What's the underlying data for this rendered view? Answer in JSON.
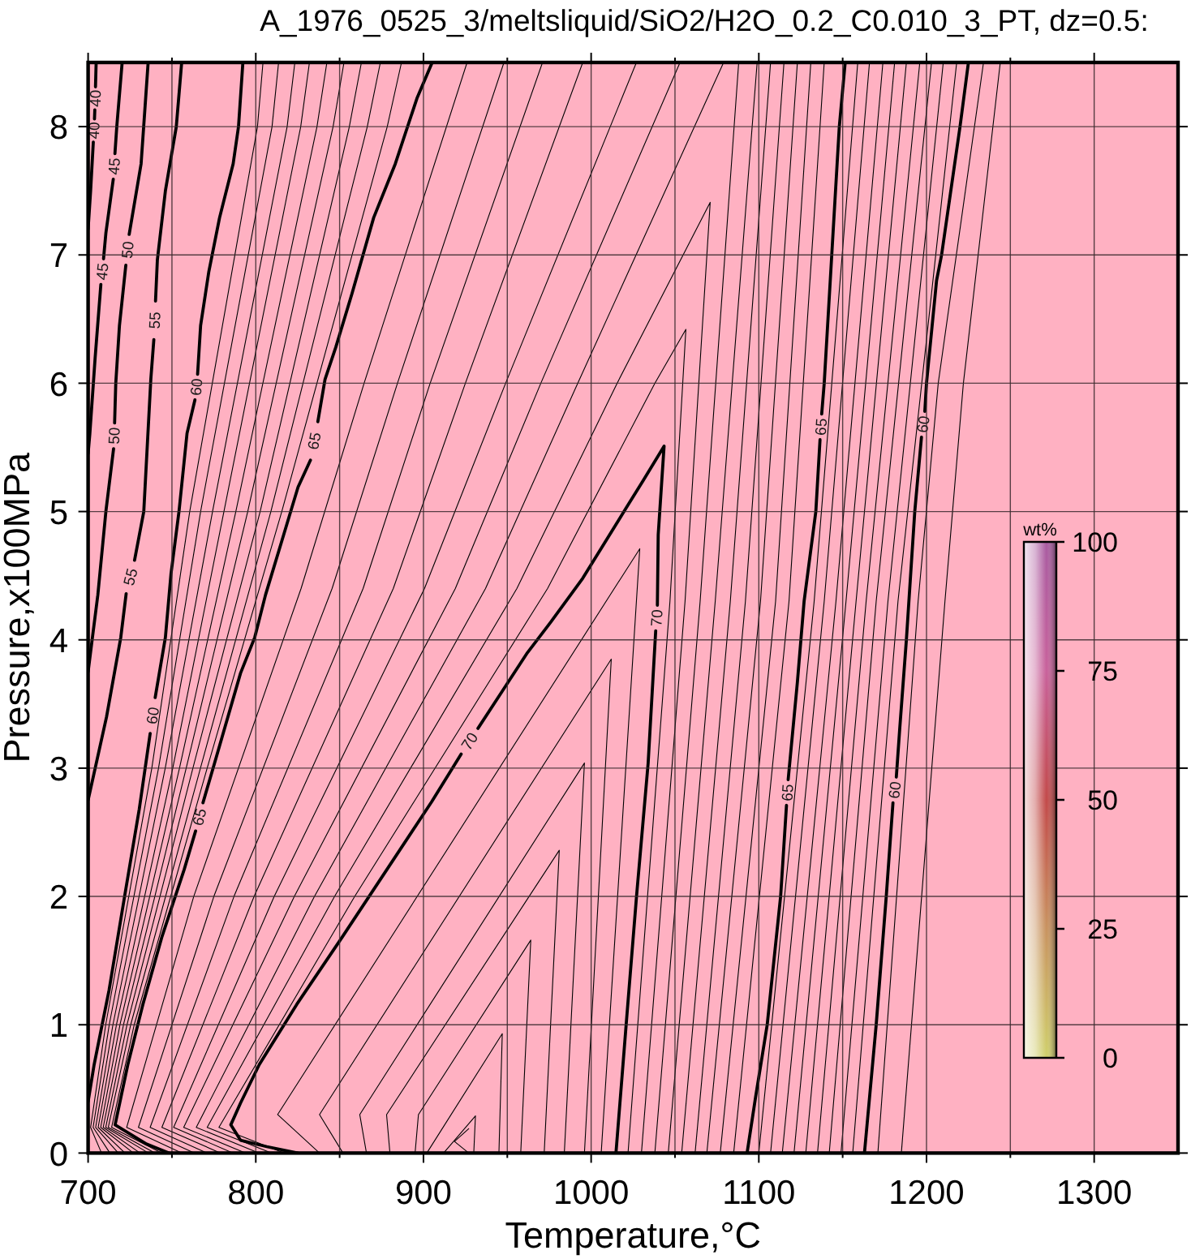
{
  "chart_data": {
    "type": "line",
    "title": "A_1976_0525_3/meltsliquid/SiO2/H2O_0.2_C0.010_3_PT, dz=0.5:",
    "xlabel": "Temperature,°C",
    "ylabel": "Pressure,x100MPa",
    "clabel": "wt%",
    "annotations": [
      "0",
      "25",
      "50",
      "75",
      "100"
    ],
    "xlim": [
      700,
      1350
    ],
    "ylim": [
      0,
      8.5
    ],
    "xticks": [
      700,
      {
        "value": 750,
        "label": null
      },
      800,
      {
        "value": 850,
        "label": null
      },
      900,
      {
        "value": 950,
        "label": null
      },
      1000,
      {
        "value": 1050,
        "label": null
      },
      1100,
      {
        "value": 1150,
        "label": null
      },
      1200,
      {
        "value": 1250,
        "label": null
      },
      1300
    ],
    "yticks": [
      0,
      1,
      2,
      3,
      4,
      5,
      6,
      7,
      8
    ],
    "grid": true,
    "series": [
      {
        "name": "60",
        "color": "#000000",
        "x": [
          1163,
          1170,
          1176,
          1180,
          1181,
          1182,
          1184,
          1188,
          1193,
          1197,
          1198,
          1199,
          1200,
          1206,
          1209,
          1220,
          1225
        ],
        "values": [
          0,
          1,
          2,
          2.73,
          null,
          2.93,
          3.3,
          4,
          5,
          5.58,
          null,
          5.78,
          6,
          6.8,
          7,
          8,
          8.5
        ]
      },
      {
        "name": "65",
        "color": "#000000",
        "x": [
          1093,
          1098,
          1105,
          1113,
          1116.5,
          1117,
          1117.5,
          1123,
          1127,
          1134,
          1136.5,
          1137,
          1137.5,
          1139,
          1143.5,
          1148,
          1151.5
        ],
        "values": [
          0,
          0.43,
          1,
          2,
          2.71,
          null,
          2.91,
          3.67,
          4.3,
          5,
          5.56,
          null,
          5.76,
          6,
          7,
          8,
          8.5
        ]
      },
      {
        "name": "70",
        "color": "#000000",
        "x": [
          825,
          806.6,
          790.9,
          785.1,
          790.9,
          802.1,
          824.5,
          851.4,
          878.2,
          905,
          922.5,
          927.5,
          932.5,
          947,
          962,
          976,
          995,
          1021,
          1031,
          1043.5,
          1040,
          1039.5,
          1039,
          1038.5,
          1034,
          1027,
          1021,
          1014.8
        ],
        "values": [
          0,
          0.05,
          0.1,
          0.22,
          0.39,
          0.69,
          1.16,
          1.68,
          2.21,
          2.74,
          3.11,
          null,
          3.31,
          3.6,
          3.9,
          4.14,
          4.48,
          5.03,
          5.24,
          5.51,
          4.82,
          4.27,
          null,
          4.07,
          3.04,
          1.99,
          1.02,
          0
        ]
      },
      {
        "name": "65",
        "color": "#000000",
        "x": [
          905.2,
          896.1,
          883.2,
          870.3,
          857.4,
          847.7,
          841.3,
          837,
          834.8,
          832.6,
          825.2,
          815.5,
          805.8,
          799.4,
          790.9,
          775.2,
          768.5,
          766.3,
          764.1,
          757.3,
          743.9,
          732.7,
          723.7,
          716.1,
          734.9,
          748.4
        ],
        "values": [
          8.5,
          8.22,
          7.71,
          7.29,
          6.7,
          6.28,
          6.03,
          5.7,
          null,
          5.4,
          5.19,
          4.77,
          4.35,
          4.02,
          3.74,
          3.03,
          2.73,
          null,
          2.51,
          2.21,
          1.68,
          1.16,
          0.69,
          0.22,
          0.07,
          0
        ]
      },
      {
        "name": "60",
        "color": "#000000",
        "x": [
          792.3,
          789.7,
          786.5,
          778.4,
          772,
          767.1,
          765.3,
          764.5,
          763.7,
          759,
          754.2,
          749.4,
          746.1,
          740,
          738.5,
          737,
          730.5,
          721.5,
          712.5,
          703.6,
          700
        ],
        "values": [
          8.5,
          8,
          7.71,
          7.29,
          6.87,
          6.45,
          6.07,
          null,
          5.87,
          5.61,
          5,
          4.51,
          4.02,
          3.55,
          null,
          3.27,
          2.68,
          1.98,
          1.27,
          0.69,
          0.4
        ]
      },
      {
        "name": "55",
        "color": "#000000",
        "x": [
          755.8,
          752.6,
          746.1,
          741.3,
          740.2,
          739.7,
          739.2,
          737.4,
          733.2,
          727.7,
          725.2,
          722.7,
          719.5,
          711,
          700
        ],
        "values": [
          8.5,
          8,
          7.5,
          6.96,
          6.64,
          null,
          6.34,
          6.03,
          5,
          4.62,
          null,
          4.36,
          4.02,
          3.4,
          2.75
        ]
      },
      {
        "name": "50",
        "color": "#000000",
        "x": [
          735.8,
          731.6,
          724.5,
          723.5,
          722.5,
          718.7,
          716.5,
          715.8,
          715.5,
          715.2,
          710.6,
          705.8,
          702.6,
          700
        ],
        "values": [
          8.5,
          7.71,
          7.16,
          null,
          6.92,
          6.45,
          6,
          5.69,
          null,
          5.49,
          5,
          4.35,
          4.02,
          3.75
        ]
      },
      {
        "name": "45",
        "color": "#000000",
        "x": [
          720.3,
          717.1,
          716,
          715.5,
          715,
          710.6,
          709.2,
          708.4,
          707.6,
          704.2,
          701,
          700
        ],
        "values": [
          8.5,
          8,
          7.79,
          null,
          7.59,
          7.17,
          6.97,
          null,
          6.77,
          6.2,
          5.6,
          5.45
        ]
      },
      {
        "name": "40",
        "color": "#000000",
        "x": [
          704.8,
          704.4,
          704.2,
          704,
          703.8,
          703.4,
          703.1,
          701.5,
          700
        ],
        "values": [
          8.5,
          8.31,
          null,
          8.13,
          8.06,
          null,
          7.88,
          7.5,
          7.2
        ]
      },
      {
        "color": "#000000",
        "x": [
          817,
          778,
          859,
          974,
          1038,
          1056.5,
          1047,
          1022
        ],
        "values": [
          0,
          0.2,
          2,
          4.4,
          6,
          6.42,
          4.3,
          0
        ]
      },
      {
        "color": "#000000",
        "x": [
          809.5,
          771,
          847,
          955.7,
          1015.5,
          1071,
          1056,
          1030
        ],
        "values": [
          0,
          0.2,
          2,
          4.4,
          6,
          7.41,
          4.3,
          0
        ]
      },
      {
        "color": "#000000",
        "x": [
          802,
          764.5,
          835,
          937,
          992,
          1079
        ],
        "values": [
          0,
          0.2,
          2,
          4.4,
          6,
          8.5
        ]
      },
      {
        "color": "#000000",
        "x": [
          1088,
          1065,
          1038
        ],
        "values": [
          8.5,
          4.3,
          0
        ]
      },
      {
        "color": "#000000",
        "x": [
          794,
          757,
          823,
          919,
          970,
          1053
        ],
        "values": [
          0,
          0.2,
          2,
          4.4,
          6,
          8.5
        ]
      },
      {
        "color": "#000000",
        "x": [
          1099,
          1074,
          1046
        ],
        "values": [
          8.5,
          4.3,
          0
        ]
      },
      {
        "color": "#000000",
        "x": [
          786.5,
          751,
          811,
          900.6,
          949,
          1027
        ],
        "values": [
          0,
          0.2,
          2,
          4.4,
          6,
          8.5
        ]
      },
      {
        "color": "#000000",
        "x": [
          1107,
          1083,
          1054
        ],
        "values": [
          8.5,
          4.3,
          0
        ]
      },
      {
        "color": "#000000",
        "x": [
          779,
          744,
          799,
          882,
          925,
          995
        ],
        "values": [
          0,
          0.2,
          2,
          4.4,
          6,
          8.5
        ]
      },
      {
        "color": "#000000",
        "x": [
          1115,
          1092,
          1062
        ],
        "values": [
          8.5,
          4.3,
          0
        ]
      },
      {
        "color": "#000000",
        "x": [
          771,
          737,
          787,
          864,
          904,
          971
        ],
        "values": [
          0,
          0.2,
          2,
          4.4,
          6,
          8.5
        ]
      },
      {
        "color": "#000000",
        "x": [
          1123,
          1101,
          1069
        ],
        "values": [
          8.5,
          4.3,
          0
        ]
      },
      {
        "color": "#000000",
        "x": [
          763.5,
          730,
          775,
          845.5,
          884.5,
          948
        ],
        "values": [
          0,
          0.2,
          2,
          4.4,
          6,
          8.5
        ]
      },
      {
        "color": "#000000",
        "x": [
          1131,
          1110,
          1077
        ],
        "values": [
          8.5,
          4.3,
          0
        ]
      },
      {
        "color": "#000000",
        "x": [
          756,
          723,
          763,
          827,
          864.6,
          926
        ],
        "values": [
          0,
          0.2,
          2,
          4.4,
          6,
          8.5
        ]
      },
      {
        "color": "#000000",
        "x": [
          1139,
          1118,
          1085
        ],
        "values": [
          8.5,
          4.3,
          0
        ]
      },
      {
        "color": "#000000",
        "x": [
          838,
          813,
          1029,
          1006
        ],
        "values": [
          0,
          0.3,
          4.71,
          0
        ]
      },
      {
        "color": "#000000",
        "x": [
          852,
          838,
          1012,
          996
        ],
        "values": [
          0,
          0.3,
          3.85,
          0
        ]
      },
      {
        "color": "#000000",
        "x": [
          866,
          862,
          996,
          984
        ],
        "values": [
          0,
          0.3,
          3.04,
          0
        ]
      },
      {
        "color": "#000000",
        "x": [
          880,
          878,
          981,
          972
        ],
        "values": [
          0,
          0.3,
          2.36,
          0
        ]
      },
      {
        "color": "#000000",
        "x": [
          895,
          897,
          964,
          958
        ],
        "values": [
          0,
          0.3,
          1.66,
          0
        ]
      },
      {
        "color": "#000000",
        "x": [
          902,
          947,
          945
        ],
        "values": [
          0,
          0.93,
          0
        ]
      },
      {
        "color": "#000000",
        "x": [
          912,
          931,
          930
        ],
        "values": [
          0,
          0.29,
          0
        ]
      },
      {
        "color": "#000000",
        "x": [
          927,
          918.5,
          927
        ],
        "values": [
          0.19,
          0.09,
          0
        ]
      },
      {
        "color": "#000000",
        "x": [
          1100,
          1133,
          1159
        ],
        "values": [
          0,
          4.3,
          8.5
        ]
      },
      {
        "color": "#000000",
        "x": [
          1107,
          1139,
          1166
        ],
        "values": [
          0,
          4.3,
          8.5
        ]
      },
      {
        "color": "#000000",
        "x": [
          1114,
          1146,
          1174
        ],
        "values": [
          0,
          4.3,
          8.5
        ]
      },
      {
        "color": "#000000",
        "x": [
          1121,
          1152,
          1181
        ],
        "values": [
          0,
          4.3,
          8.5
        ]
      },
      {
        "color": "#000000",
        "x": [
          1128,
          1158,
          1188
        ],
        "values": [
          0,
          4.3,
          8.5
        ]
      },
      {
        "color": "#000000",
        "x": [
          1135,
          1164,
          1196
        ],
        "values": [
          0,
          4.3,
          8.5
        ]
      },
      {
        "color": "#000000",
        "x": [
          1142,
          1170,
          1203
        ],
        "values": [
          0,
          4.3,
          8.5
        ]
      },
      {
        "color": "#000000",
        "x": [
          1149,
          1177,
          1210
        ],
        "values": [
          0,
          4.3,
          8.5
        ]
      },
      {
        "color": "#000000",
        "x": [
          1156,
          1183,
          1218
        ],
        "values": [
          0,
          4.3,
          8.5
        ]
      },
      {
        "color": "#000000",
        "x": [
          1171,
          1195,
          1207,
          1234
        ],
        "values": [
          0,
          4.3,
          6,
          8.5
        ]
      },
      {
        "color": "#000000",
        "x": [
          1185,
          1211,
          1222,
          1244
        ],
        "values": [
          0,
          4.3,
          6,
          8.5
        ]
      },
      {
        "color": "#000000",
        "x": [
          804.3,
          801,
          760.6,
          738,
          710.5,
          701.5,
          708
        ],
        "values": [
          8.5,
          8,
          5,
          3,
          1,
          0.2,
          0
        ]
      },
      {
        "color": "#000000",
        "x": [
          813.6,
          809.7,
          767.1,
          742,
          712.6,
          703,
          713
        ],
        "values": [
          8.5,
          8,
          5,
          3,
          1,
          0.2,
          0
        ]
      },
      {
        "color": "#000000",
        "x": [
          823.3,
          818.7,
          774.2,
          746,
          714.8,
          704.5,
          718
        ],
        "values": [
          8.5,
          8,
          5,
          3,
          1,
          0.2,
          0
        ]
      },
      {
        "color": "#000000",
        "x": [
          832,
          826.8,
          781,
          750.5,
          716.9,
          706,
          722
        ],
        "values": [
          8.5,
          8,
          5,
          3,
          1,
          0.2,
          0
        ]
      },
      {
        "color": "#000000",
        "x": [
          842.4,
          836.5,
          788.1,
          754.5,
          719,
          707.5,
          727
        ],
        "values": [
          8.5,
          8,
          5,
          3,
          1,
          0.2,
          0
        ]
      },
      {
        "color": "#000000",
        "x": [
          852.6,
          846.1,
          795.2,
          758.5,
          721.1,
          709,
          731
        ],
        "values": [
          8.5,
          8,
          5,
          3,
          1,
          0.2,
          0
        ]
      },
      {
        "color": "#000000",
        "x": [
          863,
          855.8,
          802.6,
          762.5,
          723.2,
          710.5,
          736
        ],
        "values": [
          8.5,
          8,
          5,
          3,
          1,
          0.2,
          0
        ]
      },
      {
        "color": "#000000",
        "x": [
          874.3,
          866.5,
          809,
          767,
          725.4,
          712,
          740
        ],
        "values": [
          8.5,
          8,
          5,
          3,
          1,
          0.2,
          0
        ]
      },
      {
        "color": "#000000",
        "x": [
          886.9,
          878.4,
          815.5,
          771,
          727.5,
          714,
          744
        ],
        "values": [
          8.5,
          8,
          5,
          3,
          1,
          0.2,
          0
        ]
      }
    ]
  }
}
